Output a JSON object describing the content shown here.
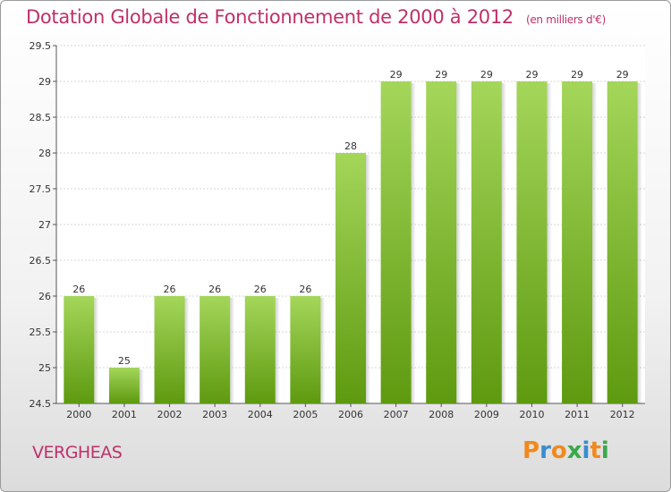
{
  "header": {
    "title": "Dotation Globale de Fonctionnement de 2000 à 2012",
    "subtitle": "(en milliers d'€)"
  },
  "footer": {
    "commune": "VERGHEAS",
    "brand": "Proxiti"
  },
  "colors": {
    "title": "#c0306a",
    "bar_light": "#a4d65a",
    "bar_dark": "#5e9a10",
    "brand_letters": [
      "#f08a1d",
      "#3a8ccf",
      "#f08a1d",
      "#3aa84a",
      "#3a8ccf",
      "#f08a1d",
      "#3aa84a"
    ]
  },
  "chart_data": {
    "type": "bar",
    "categories": [
      "2000",
      "2001",
      "2002",
      "2003",
      "2004",
      "2005",
      "2006",
      "2007",
      "2008",
      "2009",
      "2010",
      "2011",
      "2012"
    ],
    "values": [
      26,
      25,
      26,
      26,
      26,
      26,
      28,
      29,
      29,
      29,
      29,
      29,
      29
    ],
    "data_labels": [
      "26",
      "25",
      "26",
      "26",
      "26",
      "26",
      "28",
      "29",
      "29",
      "29",
      "29",
      "29",
      "29"
    ],
    "ylim": [
      24.5,
      29.5
    ],
    "yticks": [
      24.5,
      25,
      25.5,
      26,
      26.5,
      27,
      27.5,
      28,
      28.5,
      29,
      29.5
    ],
    "ytick_labels": [
      "24.5",
      "25",
      "25.5",
      "26",
      "26.5",
      "27",
      "27.5",
      "28",
      "28.5",
      "29",
      "29.5"
    ],
    "grid": true
  }
}
